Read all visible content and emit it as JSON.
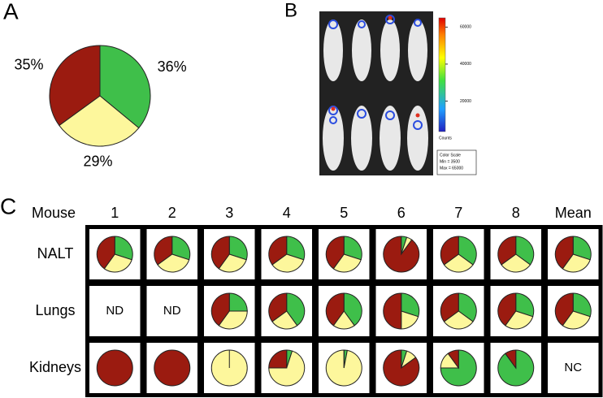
{
  "chart_data": [
    {
      "type": "pie",
      "label": "A",
      "colors": [
        "#3fbf4a",
        "#fdf79c",
        "#9b1b10"
      ],
      "values": [
        36,
        29,
        35
      ],
      "value_labels": [
        "36%",
        "29%",
        "35%"
      ]
    },
    {
      "type": "image",
      "label": "B",
      "colorbar_label": "Counts",
      "ylim": [
        3500,
        65000
      ],
      "yticks": [
        20000,
        40000,
        60000
      ],
      "legend_lines": [
        "Color Scale",
        "Min = 3500",
        "Max = 65000"
      ]
    },
    {
      "type": "pie-grid",
      "label": "C",
      "corner": "Mouse",
      "colors": [
        "#3fbf4a",
        "#fdf79c",
        "#9b1b10"
      ],
      "columns": [
        "1",
        "2",
        "3",
        "4",
        "5",
        "6",
        "7",
        "8",
        "Mean"
      ],
      "rows": [
        {
          "name": "NALT",
          "cells": [
            [
              30,
              30,
              40
            ],
            [
              30,
              35,
              35
            ],
            [
              30,
              30,
              40
            ],
            [
              30,
              35,
              35
            ],
            [
              30,
              30,
              40
            ],
            [
              5,
              5,
              90
            ],
            [
              35,
              30,
              35
            ],
            [
              35,
              30,
              35
            ],
            [
              30,
              30,
              40
            ]
          ]
        },
        {
          "name": "Lungs",
          "cells": [
            "ND",
            "ND",
            [
              25,
              35,
              40
            ],
            [
              40,
              25,
              35
            ],
            [
              40,
              20,
              40
            ],
            [
              30,
              20,
              50
            ],
            [
              35,
              30,
              35
            ],
            [
              30,
              30,
              40
            ],
            [
              30,
              30,
              40
            ]
          ]
        },
        {
          "name": "Kidneys",
          "cells": [
            [
              0,
              0,
              100
            ],
            [
              0,
              0,
              100
            ],
            [
              0,
              100,
              0
            ],
            [
              5,
              70,
              25
            ],
            [
              3,
              97,
              0
            ],
            [
              5,
              10,
              85
            ],
            [
              75,
              15,
              10
            ],
            [
              90,
              0,
              10
            ],
            "NC"
          ]
        }
      ]
    }
  ]
}
